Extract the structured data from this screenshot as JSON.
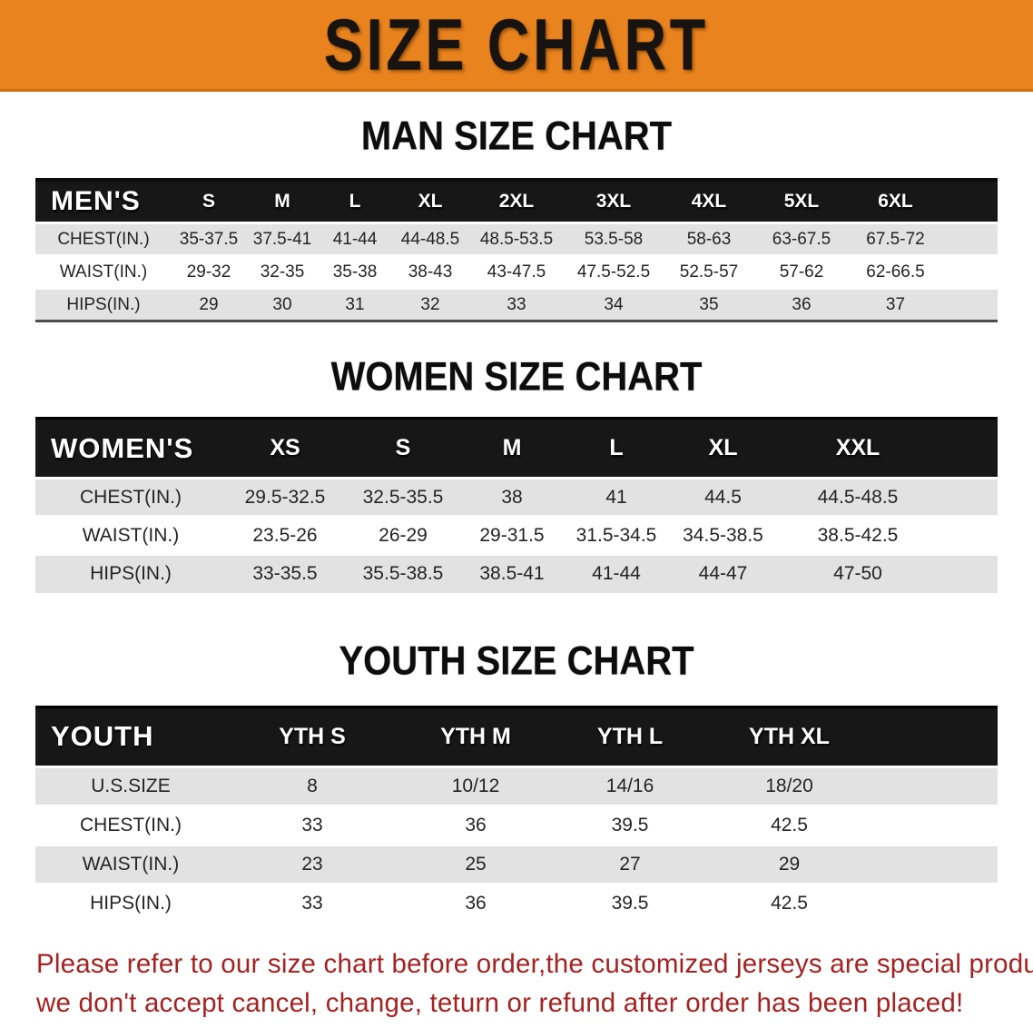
{
  "banner": {
    "title": "SIZE CHART",
    "bg_color": "#e8831e",
    "text_color": "#161310"
  },
  "colors": {
    "header_bar": "#171717",
    "row_gray": "#e2e2e2",
    "row_white": "#ffffff",
    "disclaimer_red": "#a52222"
  },
  "tables": [
    {
      "title": "MAN SIZE CHART",
      "header_label": "MEN'S",
      "columns": [
        "S",
        "M",
        "L",
        "XL",
        "2XL",
        "3XL",
        "4XL",
        "5XL",
        "6XL"
      ],
      "rows": [
        {
          "label": "CHEST(IN.)",
          "values": [
            "35-37.5",
            "37.5-41",
            "41-44",
            "44-48.5",
            "48.5-53.5",
            "53.5-58",
            "58-63",
            "63-67.5",
            "67.5-72"
          ]
        },
        {
          "label": "WAIST(IN.)",
          "values": [
            "29-32",
            "32-35",
            "35-38",
            "38-43",
            "43-47.5",
            "47.5-52.5",
            "52.5-57",
            "57-62",
            "62-66.5"
          ]
        },
        {
          "label": "HIPS(IN.)",
          "values": [
            "29",
            "30",
            "31",
            "32",
            "33",
            "34",
            "35",
            "36",
            "37"
          ]
        }
      ]
    },
    {
      "title": "WOMEN SIZE CHART",
      "header_label": "WOMEN'S",
      "columns": [
        "XS",
        "S",
        "M",
        "L",
        "XL",
        "XXL"
      ],
      "rows": [
        {
          "label": "CHEST(IN.)",
          "values": [
            "29.5-32.5",
            "32.5-35.5",
            "38",
            "41",
            "44.5",
            "44.5-48.5"
          ]
        },
        {
          "label": "WAIST(IN.)",
          "values": [
            "23.5-26",
            "26-29",
            "29-31.5",
            "31.5-34.5",
            "34.5-38.5",
            "38.5-42.5"
          ]
        },
        {
          "label": "HIPS(IN.)",
          "values": [
            "33-35.5",
            "35.5-38.5",
            "38.5-41",
            "41-44",
            "44-47",
            "47-50"
          ]
        }
      ]
    },
    {
      "title": "YOUTH SIZE CHART",
      "header_label": "YOUTH",
      "columns": [
        "YTH S",
        "YTH M",
        "YTH L",
        "YTH XL"
      ],
      "rows": [
        {
          "label": "U.S.SIZE",
          "values": [
            "8",
            "10/12",
            "14/16",
            "18/20"
          ]
        },
        {
          "label": "CHEST(IN.)",
          "values": [
            "33",
            "36",
            "39.5",
            "42.5"
          ]
        },
        {
          "label": "WAIST(IN.)",
          "values": [
            "23",
            "25",
            "27",
            "29"
          ]
        },
        {
          "label": "HIPS(IN.)",
          "values": [
            "33",
            "36",
            "39.5",
            "42.5"
          ]
        }
      ]
    }
  ],
  "disclaimer": {
    "line1": "Please refer to our size chart before order,the customized jerseys are special products,",
    "line2": "we don't accept cancel, change, teturn or refund after order has been placed!"
  }
}
